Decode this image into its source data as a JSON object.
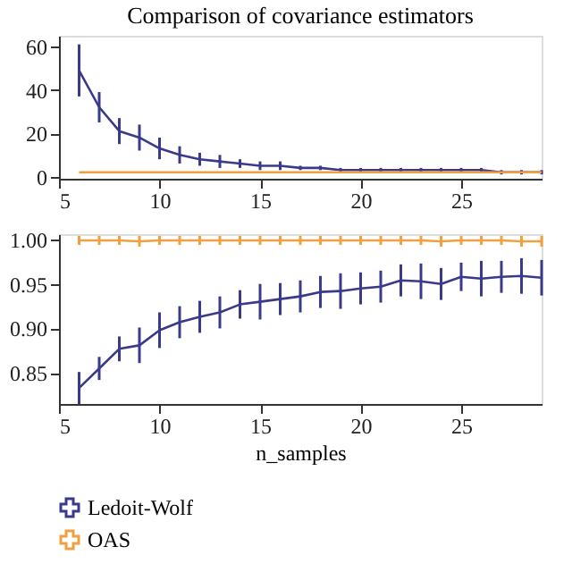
{
  "chart_data": [
    {
      "type": "line",
      "title": "Comparison of covariance estimators",
      "x": [
        6,
        7,
        8,
        9,
        10,
        11,
        12,
        13,
        14,
        15,
        16,
        17,
        18,
        19,
        20,
        21,
        22,
        23,
        24,
        25,
        26,
        27,
        28,
        29
      ],
      "xlim": [
        5,
        29
      ],
      "xticks": [
        5,
        10,
        15,
        20,
        25
      ],
      "ylim": [
        -1,
        65
      ],
      "yticks": [
        0,
        20,
        40,
        60
      ],
      "grid": false,
      "legend": "bottom",
      "series": [
        {
          "name": "Ledoit-Wolf",
          "color": "#3a3a8a",
          "values": [
            49,
            32,
            21,
            18,
            13,
            10,
            8,
            7,
            6,
            5,
            5,
            4,
            4,
            3,
            3,
            3,
            3,
            3,
            3,
            3,
            3,
            2,
            2,
            2
          ],
          "errors": [
            12,
            7,
            6,
            6,
            5,
            4,
            3,
            3,
            2,
            2,
            2,
            1,
            1,
            1,
            1,
            1,
            1,
            1,
            1,
            1,
            1,
            1,
            1,
            1
          ]
        },
        {
          "name": "OAS",
          "color": "#f0a040",
          "values": [
            2,
            2,
            2,
            2,
            2,
            2,
            2,
            2,
            2,
            2,
            2,
            2,
            2,
            2,
            2,
            2,
            2,
            2,
            2,
            2,
            2,
            2,
            2,
            2
          ]
        }
      ]
    },
    {
      "type": "line",
      "xlabel": "n_samples",
      "x": [
        6,
        7,
        8,
        9,
        10,
        11,
        12,
        13,
        14,
        15,
        16,
        17,
        18,
        19,
        20,
        21,
        22,
        23,
        24,
        25,
        26,
        27,
        28,
        29
      ],
      "xlim": [
        5,
        29
      ],
      "xticks": [
        5,
        10,
        15,
        20,
        25
      ],
      "ylim": [
        0.815,
        1.006
      ],
      "yticks": [
        {
          "value": 0.85,
          "label": "0.85"
        },
        {
          "value": 0.9,
          "label": "0.90"
        },
        {
          "value": 0.95,
          "label": "0.95"
        },
        {
          "value": 1.0,
          "label": "1.00"
        }
      ],
      "grid": false,
      "legend": "bottom",
      "series": [
        {
          "name": "Ledoit-Wolf",
          "color": "#3a3a8a",
          "values": [
            0.833,
            0.855,
            0.877,
            0.881,
            0.898,
            0.907,
            0.913,
            0.918,
            0.927,
            0.93,
            0.933,
            0.936,
            0.941,
            0.942,
            0.945,
            0.947,
            0.954,
            0.953,
            0.95,
            0.958,
            0.956,
            0.958,
            0.959,
            0.957
          ],
          "errors": [
            0.018,
            0.013,
            0.014,
            0.02,
            0.02,
            0.018,
            0.018,
            0.018,
            0.016,
            0.02,
            0.018,
            0.018,
            0.018,
            0.02,
            0.018,
            0.018,
            0.018,
            0.02,
            0.018,
            0.016,
            0.02,
            0.018,
            0.02,
            0.02
          ]
        },
        {
          "name": "OAS",
          "color": "#f0a040",
          "values": [
            0.999,
            0.999,
            0.999,
            0.998,
            0.999,
            0.999,
            0.999,
            0.999,
            0.999,
            0.999,
            0.999,
            0.999,
            0.999,
            0.999,
            0.999,
            0.999,
            0.999,
            0.999,
            0.998,
            0.999,
            0.999,
            0.999,
            0.998,
            0.998
          ],
          "errors": [
            0.005,
            0.005,
            0.005,
            0.006,
            0.005,
            0.005,
            0.005,
            0.005,
            0.005,
            0.005,
            0.005,
            0.005,
            0.005,
            0.005,
            0.005,
            0.005,
            0.005,
            0.005,
            0.006,
            0.005,
            0.005,
            0.005,
            0.006,
            0.006
          ]
        }
      ]
    }
  ]
}
